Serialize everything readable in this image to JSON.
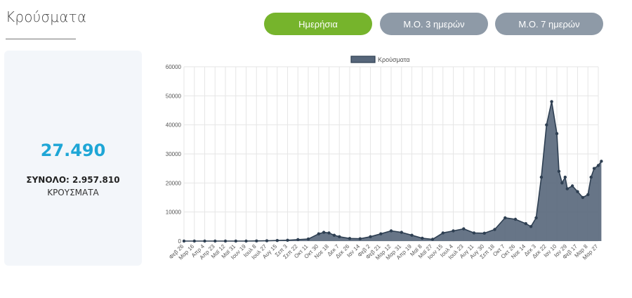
{
  "page": {
    "title": "Κρούσματα"
  },
  "toggles": [
    {
      "label": "Ημερήσια",
      "active": true
    },
    {
      "label": "Μ.Ο. 3 ημερών",
      "active": false
    },
    {
      "label": "Μ.Ο. 7 ημερών",
      "active": false
    }
  ],
  "summary": {
    "value": "27.490",
    "total_label": "ΣΥΝΟΛΟ: 2.957.810",
    "caption": "ΚΡΟΥΣΜΑΤΑ"
  },
  "colors": {
    "accent_green": "#76b42c",
    "toggle_grey": "#8e9aa7",
    "value_blue": "#1ea6d6",
    "series_fill": "#56667a",
    "series_line": "#2e3f52"
  },
  "chart_data": {
    "type": "area",
    "title": "",
    "xlabel": "",
    "ylabel": "",
    "ylim": [
      0,
      60000
    ],
    "yticks": [
      0,
      10000,
      20000,
      30000,
      40000,
      50000,
      60000
    ],
    "grid": true,
    "legend_position": "top-center",
    "xtick_labels": [
      "Φεβ 26",
      "Μαρ 16",
      "Απρ 4",
      "Απρ 23",
      "Μαϊ 12",
      "Μαϊ 31",
      "Ιουν 19",
      "Ιουλ 8",
      "Ιουλ 27",
      "Αυγ 15",
      "Σεπ 3",
      "Σεπ 22",
      "Οκτ 11",
      "Οκτ 30",
      "Νοε 18",
      "Δεκ 7",
      "Δεκ 26",
      "Ιαν 14",
      "Φεβ 2",
      "Φεβ 21",
      "Μαρ 12",
      "Μαρ 31",
      "Απρ 19",
      "Μαϊ 8",
      "Μαϊ 27",
      "Ιουν 15",
      "Ιουλ 4",
      "Ιουλ 23",
      "Αυγ 11",
      "Αυγ 30",
      "Σεπ 18",
      "Οκτ 7",
      "Οκτ 26",
      "Νοε 14",
      "Δεκ 3",
      "Δεκ 22",
      "Ιαν 10",
      "Ιαν 29",
      "Φεβ 17",
      "Μαρ 8",
      "Μαρ 27"
    ],
    "series": [
      {
        "name": "Κρούσματα",
        "x_positions": [
          0,
          1,
          2,
          3,
          4,
          5,
          6,
          7,
          8,
          9,
          10,
          11,
          12,
          13,
          13.5,
          14,
          14.5,
          15,
          16,
          17,
          18,
          19,
          20,
          21,
          22,
          23,
          24,
          25,
          26,
          27,
          28,
          29,
          30,
          31,
          32,
          33,
          33.5,
          34,
          34.5,
          35,
          35.5,
          36,
          36.2,
          36.5,
          36.8,
          37,
          37.5,
          38,
          38.5,
          39,
          39.3,
          39.6,
          40,
          40.3
        ],
        "values": [
          0,
          0,
          0,
          0,
          0,
          0,
          0,
          50,
          100,
          200,
          300,
          500,
          700,
          2500,
          3000,
          2800,
          2000,
          1500,
          900,
          800,
          1500,
          2500,
          3500,
          3000,
          2000,
          1000,
          600,
          2800,
          3500,
          4200,
          2800,
          2700,
          4000,
          8000,
          7500,
          6000,
          5000,
          8000,
          22000,
          40000,
          48000,
          37000,
          24000,
          20000,
          22000,
          18000,
          19000,
          17000,
          15000,
          16000,
          22000,
          25000,
          26000,
          27490
        ]
      }
    ]
  }
}
